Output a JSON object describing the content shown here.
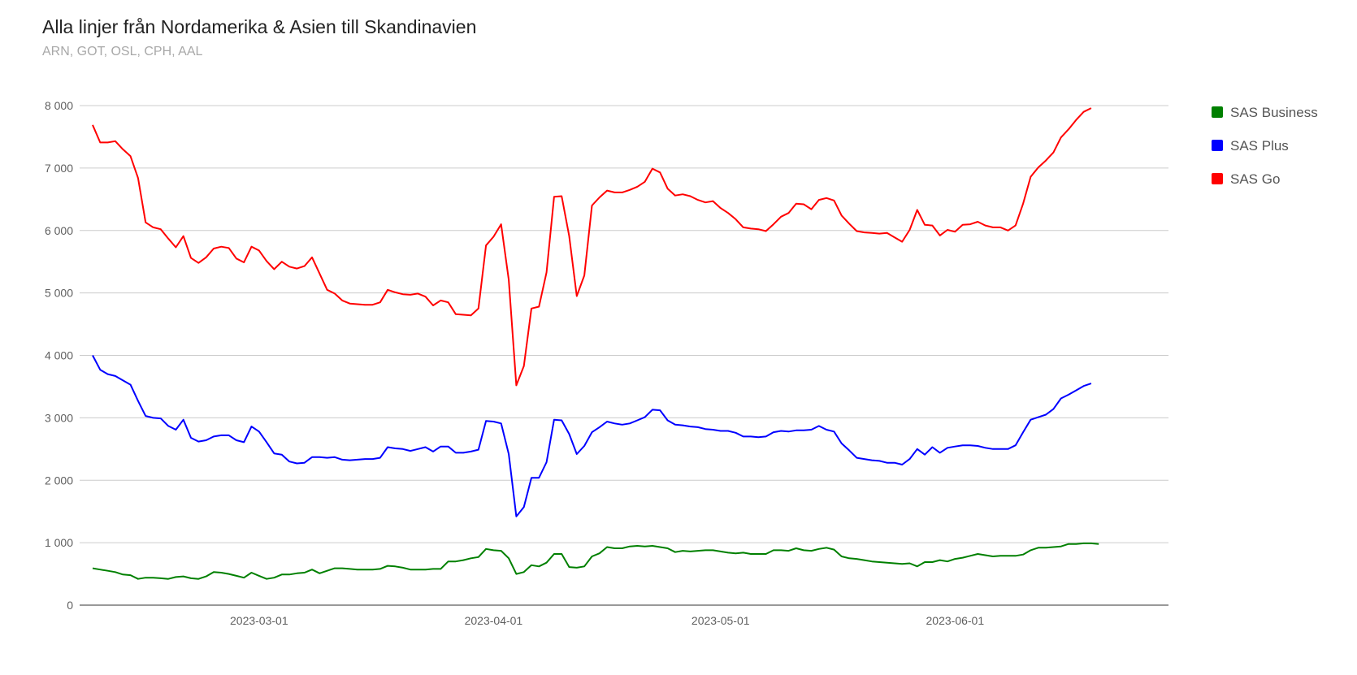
{
  "chart_data": {
    "type": "line",
    "title": "Alla linjer från Nordamerika & Asien till Skandinavien",
    "subtitle": "ARN, GOT, OSL, CPH, AAL",
    "xlabel": "",
    "ylabel": "",
    "ylim": [
      0,
      8000
    ],
    "y_ticks": [
      0,
      1000,
      2000,
      3000,
      4000,
      5000,
      6000,
      7000,
      8000
    ],
    "y_tick_labels": [
      "0",
      "1 000",
      "2 000",
      "3 000",
      "4 000",
      "5 000",
      "6 000",
      "7 000",
      "8 000"
    ],
    "x_tick_labels": [
      "2023-03-01",
      "2023-04-01",
      "2023-05-01",
      "2023-06-01"
    ],
    "x_tick_days": [
      22,
      53,
      83,
      114
    ],
    "x_range_days": [
      0,
      133
    ],
    "x_start_date": "2023-02-07",
    "legend_position": "right",
    "series": [
      {
        "name": "SAS Business",
        "color": "#008000",
        "values": [
          590,
          570,
          550,
          530,
          490,
          480,
          420,
          440,
          440,
          430,
          420,
          450,
          460,
          430,
          420,
          460,
          530,
          520,
          500,
          470,
          440,
          520,
          470,
          420,
          440,
          490,
          490,
          510,
          520,
          570,
          510,
          550,
          590,
          590,
          580,
          570,
          570,
          570,
          580,
          630,
          620,
          600,
          570,
          570,
          570,
          580,
          580,
          700,
          700,
          720,
          750,
          770,
          900,
          880,
          870,
          750,
          500,
          530,
          640,
          620,
          680,
          820,
          820,
          610,
          600,
          620,
          780,
          830,
          930,
          910,
          910,
          940,
          950,
          940,
          950,
          930,
          910,
          850,
          870,
          860,
          870,
          880,
          880,
          860,
          840,
          830,
          840,
          820,
          820,
          820,
          880,
          880,
          870,
          910,
          880,
          870,
          900,
          920,
          890,
          780,
          750,
          740,
          720,
          700,
          690,
          680,
          670,
          660,
          670,
          620,
          690,
          690,
          720,
          700,
          740,
          760,
          790,
          820,
          800,
          780,
          790,
          790,
          790,
          810,
          880,
          920,
          920,
          930,
          940,
          980,
          980,
          990,
          990,
          980
        ]
      },
      {
        "name": "SAS Plus",
        "color": "#0000ff",
        "values": [
          4000,
          3770,
          3700,
          3670,
          3600,
          3530,
          3270,
          3030,
          3000,
          2990,
          2870,
          2810,
          2970,
          2680,
          2620,
          2640,
          2700,
          2720,
          2720,
          2640,
          2610,
          2860,
          2780,
          2610,
          2430,
          2410,
          2300,
          2270,
          2280,
          2370,
          2370,
          2360,
          2370,
          2330,
          2320,
          2330,
          2340,
          2340,
          2360,
          2530,
          2510,
          2500,
          2470,
          2500,
          2530,
          2460,
          2540,
          2540,
          2440,
          2440,
          2460,
          2490,
          2950,
          2940,
          2910,
          2420,
          1420,
          1570,
          2040,
          2040,
          2290,
          2970,
          2960,
          2740,
          2420,
          2550,
          2770,
          2850,
          2940,
          2910,
          2890,
          2910,
          2960,
          3010,
          3130,
          3120,
          2960,
          2890,
          2880,
          2860,
          2850,
          2820,
          2810,
          2790,
          2790,
          2760,
          2700,
          2700,
          2690,
          2700,
          2770,
          2790,
          2780,
          2800,
          2800,
          2810,
          2870,
          2810,
          2780,
          2590,
          2480,
          2360,
          2340,
          2320,
          2310,
          2280,
          2280,
          2250,
          2340,
          2500,
          2410,
          2530,
          2440,
          2520,
          2540,
          2560,
          2560,
          2550,
          2520,
          2500,
          2500,
          2500,
          2560,
          2770,
          2970,
          3010,
          3050,
          3140,
          3310,
          3370,
          3440,
          3510,
          3550
        ]
      },
      {
        "name": "SAS Go",
        "color": "#ff0000",
        "values": [
          7690,
          7410,
          7410,
          7430,
          7300,
          7190,
          6840,
          6130,
          6050,
          6020,
          5870,
          5730,
          5910,
          5560,
          5480,
          5570,
          5710,
          5740,
          5720,
          5550,
          5490,
          5740,
          5680,
          5510,
          5380,
          5500,
          5420,
          5390,
          5430,
          5570,
          5310,
          5050,
          4990,
          4880,
          4830,
          4820,
          4810,
          4810,
          4850,
          5050,
          5010,
          4980,
          4970,
          4990,
          4940,
          4800,
          4880,
          4850,
          4660,
          4650,
          4640,
          4750,
          5760,
          5900,
          6100,
          5210,
          3520,
          3830,
          4750,
          4780,
          5330,
          6540,
          6550,
          5910,
          4950,
          5280,
          6400,
          6530,
          6640,
          6610,
          6610,
          6650,
          6700,
          6780,
          6990,
          6930,
          6670,
          6560,
          6580,
          6550,
          6490,
          6450,
          6470,
          6360,
          6280,
          6180,
          6050,
          6030,
          6020,
          5990,
          6100,
          6220,
          6280,
          6430,
          6420,
          6340,
          6490,
          6520,
          6480,
          6240,
          6110,
          5990,
          5970,
          5960,
          5950,
          5960,
          5890,
          5820,
          6010,
          6330,
          6090,
          6080,
          5920,
          6010,
          5980,
          6090,
          6100,
          6140,
          6080,
          6050,
          6050,
          6000,
          6080,
          6430,
          6860,
          7010,
          7120,
          7250,
          7490,
          7620,
          7770,
          7900,
          7960
        ]
      }
    ]
  }
}
